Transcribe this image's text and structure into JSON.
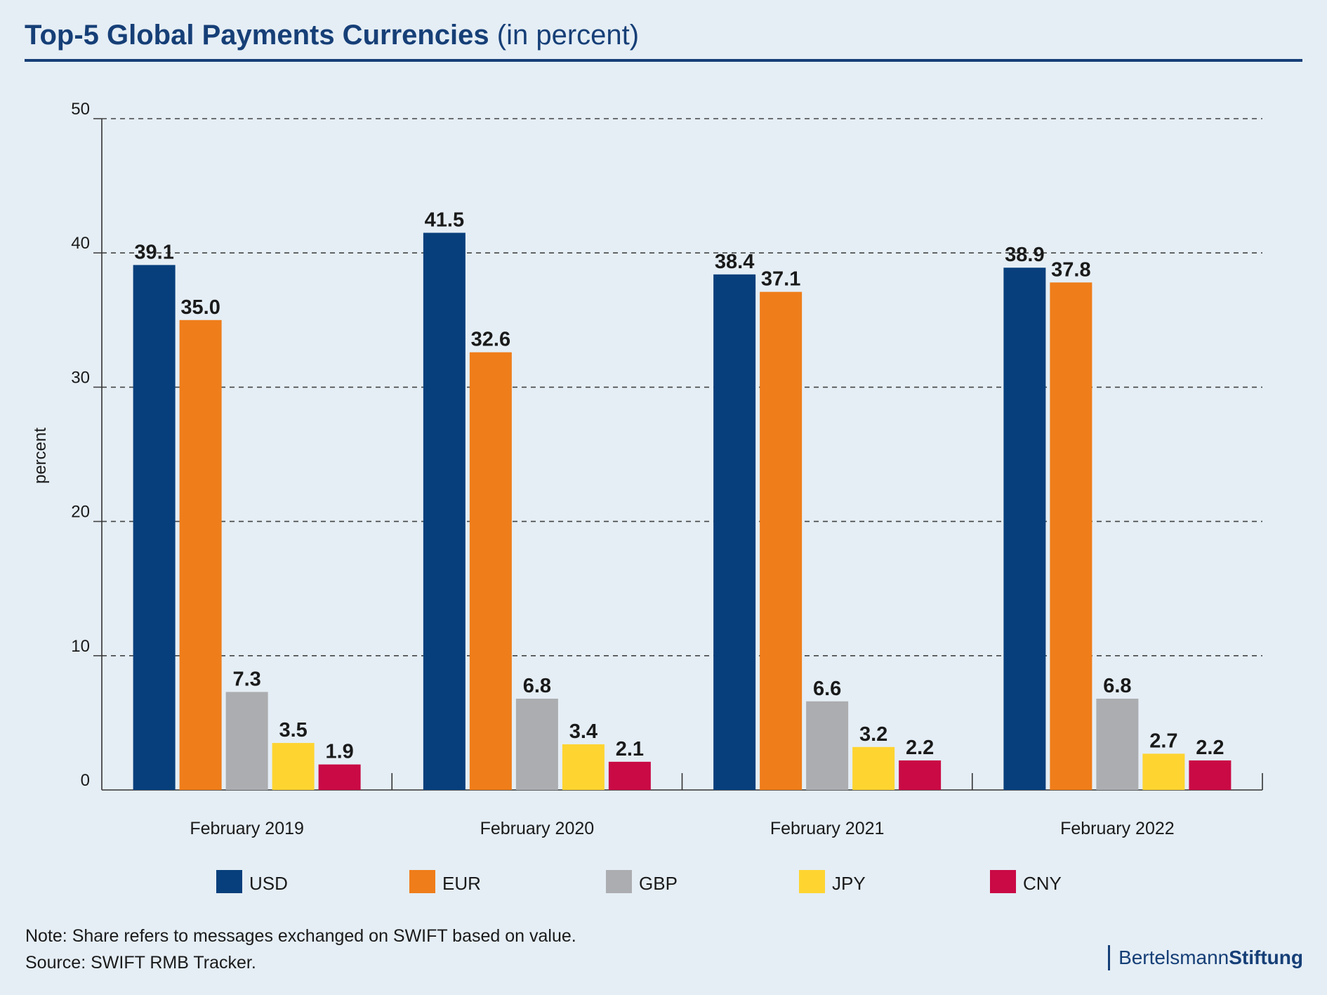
{
  "header": {
    "title_main": "Top-5 Global Payments Currencies",
    "title_sub": "(in percent)"
  },
  "chart_data": {
    "type": "bar",
    "categories": [
      "February 2019",
      "February 2020",
      "February 2021",
      "February 2022"
    ],
    "series": [
      {
        "name": "USD",
        "color": "#073f7c",
        "values": [
          39.1,
          41.5,
          38.4,
          38.9
        ]
      },
      {
        "name": "EUR",
        "color": "#ef7d1a",
        "values": [
          35.0,
          32.6,
          37.1,
          37.8
        ]
      },
      {
        "name": "GBP",
        "color": "#acadb0",
        "values": [
          7.3,
          6.8,
          6.6,
          6.8
        ]
      },
      {
        "name": "JPY",
        "color": "#fed431",
        "values": [
          3.5,
          3.4,
          3.2,
          2.7
        ]
      },
      {
        "name": "CNY",
        "color": "#c90a45",
        "values": [
          1.9,
          2.1,
          2.2,
          2.2
        ]
      }
    ],
    "value_labels": [
      [
        "39.1",
        "41.5",
        "38.4",
        "38.9"
      ],
      [
        "35.0",
        "32.6",
        "37.1",
        "37.8"
      ],
      [
        "7.3",
        "6.8",
        "6.6",
        "6.8"
      ],
      [
        "3.5",
        "3.4",
        "3.2",
        "2.7"
      ],
      [
        "1.9",
        "2.1",
        "2.2",
        "2.2"
      ]
    ],
    "ylabel": "percent",
    "ylim": [
      0,
      50
    ],
    "yticks": [
      0,
      10,
      20,
      30,
      40,
      50
    ],
    "grid": true,
    "legend": "bottom"
  },
  "footer": {
    "note": "Note: Share refers to messages exchanged on SWIFT based on value.",
    "source": "Source: SWIFT RMB Tracker."
  },
  "logo": {
    "part1": "Bertelsmann",
    "part2": "Stiftung"
  }
}
